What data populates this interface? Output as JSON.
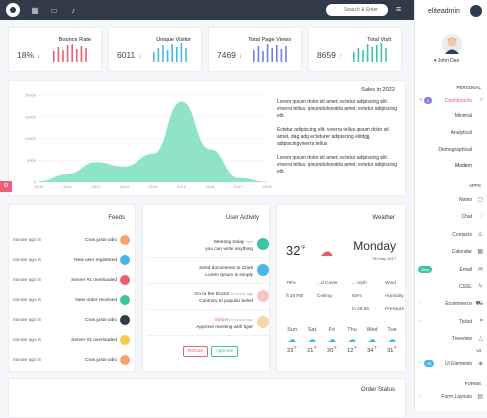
{
  "topbar": {
    "icons": [
      "logo-icon",
      "grid-icon",
      "message-icon",
      "bell-icon"
    ],
    "search_placeholder": "Search & Enter",
    "menu_icon": "hamburger-icon"
  },
  "stats": [
    {
      "title": "Bounce Rate",
      "value": "18%",
      "trend": "down",
      "trend_color": "#ec5f72",
      "bar_color": "#ec5f72",
      "bars": [
        0.55,
        0.75,
        0.6,
        0.85,
        0.9,
        0.65,
        0.8,
        0.7
      ]
    },
    {
      "title": "Unique Visitor",
      "value": "6011",
      "trend": "down",
      "trend_color": "#ec5f72",
      "bar_color": "#4ab6e8",
      "bars": [
        0.5,
        0.7,
        0.85,
        0.6,
        0.9,
        0.75,
        0.95,
        0.7
      ]
    },
    {
      "title": "Total Page Views",
      "value": "7469",
      "trend": "down",
      "trend_color": "#ec5f72",
      "bar_color": "#6f7ef0",
      "bars": [
        0.6,
        0.8,
        0.55,
        0.9,
        0.7,
        0.85,
        0.65,
        0.8
      ]
    },
    {
      "title": "Total Visit",
      "value": "8659",
      "trend": "up",
      "trend_color": "#3fc4a2",
      "bar_color": "#3fc4a2",
      "bars": [
        0.5,
        0.7,
        0.6,
        0.9,
        0.75,
        0.85,
        0.95,
        0.7
      ]
    }
  ],
  "sales": {
    "title": "Sales in 2022",
    "paragraphs": [
      "Lorem ipsum dolor sit amet, ectetur adipiscing elit. viverra tellus. ipsumdolorsitda amet, ectetur adipiscing elit.",
      "Ectetur adipiscing elit. viverra tellus.ipsum dolor sit amet, dag adg ecteturer adipiscing elitdgjj, adipiscingviverra tellus",
      "Lorem ipsum dolor sit amet, ectetur adipiscing elit. viverra tellus. ipsumdolorsitda amet, ectetur adipiscing elit."
    ]
  },
  "chart_data": {
    "type": "area",
    "title": "",
    "x": [
      "2010",
      "2011",
      "2012",
      "2013",
      "2014",
      "2015",
      "2016",
      "2017",
      "2018"
    ],
    "yticks": [
      "0",
      "5000",
      "10000",
      "15000",
      "20000"
    ],
    "ylim": [
      0,
      20000
    ],
    "series": [
      {
        "values": [
          200,
          1800,
          4500,
          3500,
          6500,
          18500,
          7500,
          1000,
          100
        ]
      }
    ],
    "color": "#8ee3c8",
    "grid": true
  },
  "feeds": {
    "title": "Feeds",
    "items": [
      {
        "time": "minute ago 6",
        "text": "Cras justo odio",
        "color": "#f6a26b"
      },
      {
        "time": "minute ago 6",
        "text": "New user registered",
        "color": "#4ab6e8"
      },
      {
        "time": "minute ago 6",
        "text": "Server #1 overloaded",
        "color": "#ec5f72"
      },
      {
        "time": "minute ago 6",
        "text": "New order received",
        "color": "#3fc4a2"
      },
      {
        "time": "minute ago 6",
        "text": "Cras justo odio",
        "color": "#323a4a"
      },
      {
        "time": "minute ago 6",
        "text": "Server #1 overloaded",
        "color": "#f7c948"
      },
      {
        "time": "minute ago 6",
        "text": "Cras justo odio",
        "color": "#f6a26b"
      }
    ]
  },
  "activity": {
    "title": "User Activity",
    "items": [
      {
        "line1": "Meeting today",
        "time": "5pm",
        "line2": "you can write anything",
        "icon": "calendar-icon",
        "color": "#3fc4a2"
      },
      {
        "line1": "Send documents to Clark",
        "time": "",
        "line2": "Lorem Ipsum is simply",
        "icon": "image-icon",
        "color": "#4ab6e8"
      },
      {
        "line1": "Go to the Doctor",
        "time": "5 minute ago",
        "line2": "Contrary to popular belief",
        "icon": "avatar-icon",
        "color": "#f4c6c6"
      },
      {
        "line1": "Stepen",
        "time": "5 minute ago",
        "line2": "Approve meeting with tiger",
        "icon": "avatar-icon",
        "color": "#f4d9a8"
      }
    ],
    "refuse_label": "Refuse",
    "approve_label": "Approve"
  },
  "weather": {
    "title": "Weather",
    "temp": "32",
    "unit": "°F",
    "day": "Monday",
    "date": "7th May 2017",
    "rows": [
      {
        "a": "79%",
        "b": "...d Cover",
        "c": "... mph",
        "d": "Wind"
      },
      {
        "a": "ft 25760",
        "b": "Ceiling",
        "c": "83%",
        "d": "Humidity"
      },
      {
        "a": "",
        "b": "",
        "c": "in 28.56",
        "d": "Pressure"
      }
    ],
    "forecast": [
      {
        "day": "Sun",
        "temp": "23"
      },
      {
        "day": "Sat",
        "temp": "21"
      },
      {
        "day": "Fri",
        "temp": "20"
      },
      {
        "day": "Thu",
        "temp": "12"
      },
      {
        "day": "Wed",
        "temp": "34"
      },
      {
        "day": "Tue",
        "temp": "31"
      }
    ],
    "deg": "°F"
  },
  "order_status": {
    "title": "Order Status"
  },
  "sidebar": {
    "brand": "eliteadmin",
    "user_name": "John Deo",
    "personal": "PERSONAL",
    "dash_badge": "4",
    "dashboard": "Dashboards",
    "submenu": [
      "Minimal",
      "Analytical",
      "Demographical",
      "Modern"
    ],
    "apps": "APPS",
    "app_items": [
      {
        "label": "Notes",
        "icon": "notes-icon"
      },
      {
        "label": "Chat",
        "icon": "chat-icon"
      },
      {
        "label": "Contacts",
        "icon": "contacts-icon"
      },
      {
        "label": "Calendar",
        "icon": "calendar-icon"
      },
      {
        "label": "Email",
        "icon": "email-icon",
        "badge": "New"
      },
      {
        "label": "CSSL",
        "icon": "css-icon"
      },
      {
        "label": "Ecommerce",
        "icon": "cart-icon",
        "chev": true
      },
      {
        "label": "Ticket",
        "icon": "ticket-icon",
        "chev": true
      },
      {
        "label": "Treeview",
        "icon": "tree-icon"
      }
    ],
    "ui": "UI",
    "ui_badge": "25",
    "ui_elements": "Ui Elements",
    "forms": "FORMS",
    "form_layouts": "Form Layouts"
  }
}
